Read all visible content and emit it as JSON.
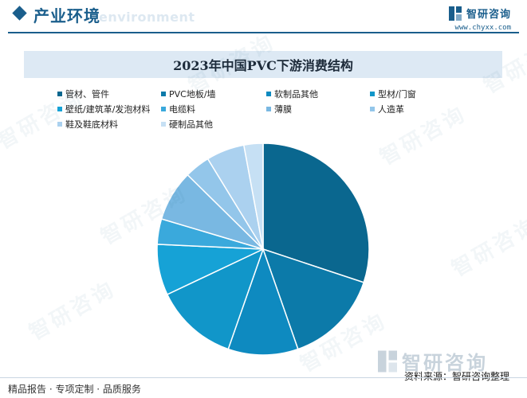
{
  "header": {
    "title": "产业环境",
    "watermark": "environment",
    "brand_name": "智研咨询",
    "brand_url": "www.chyxx.com"
  },
  "chart_data": {
    "type": "pie",
    "title": "2023年中国PVC下游消费结构",
    "categories": [
      "管材、管件",
      "PVC地板/墙",
      "软制品其他",
      "型材/门窗",
      "壁纸/建筑革/发泡材料",
      "电缆料",
      "薄膜",
      "人造革",
      "鞋及鞋底材料",
      "硬制品其他"
    ],
    "values": [
      31,
      15,
      11,
      13,
      8,
      4,
      8,
      4,
      6,
      3
    ],
    "unit": "%",
    "colors": [
      "#0a678f",
      "#0c7aa9",
      "#0e8ac0",
      "#1196c9",
      "#16a2d6",
      "#3aa9dc",
      "#79b8e2",
      "#93c6ea",
      "#abd1ef",
      "#c6e0f4"
    ]
  },
  "watermark_text": "智研咨询",
  "source_logo_name": "智研咨询",
  "footer": {
    "left": "精品报告 · 专项定制 · 品质服务",
    "source": "资料来源：智研咨询整理"
  }
}
